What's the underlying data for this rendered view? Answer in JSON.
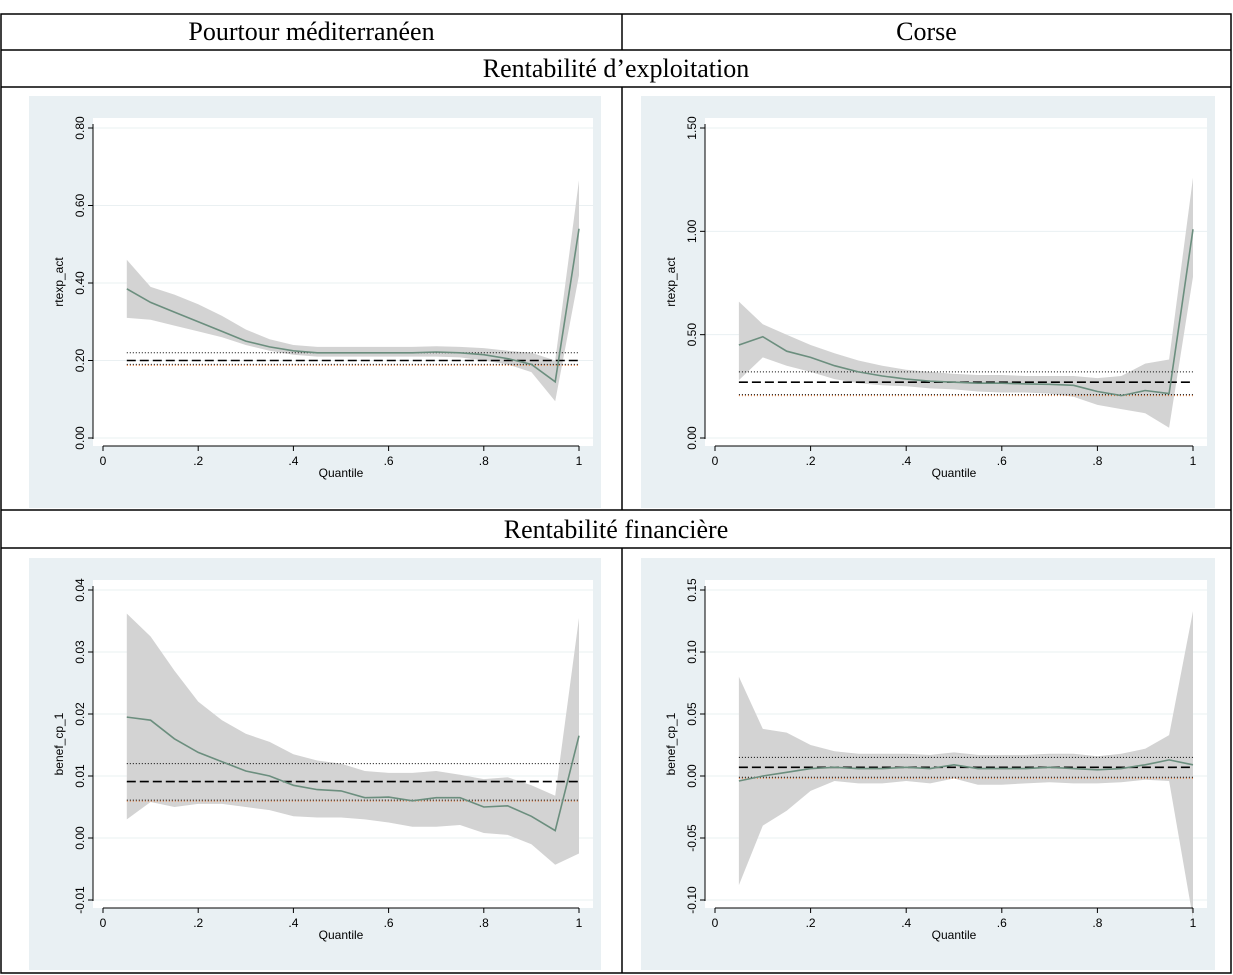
{
  "table": {
    "col_headers": [
      "Pourtour méditerranéen",
      "Corse"
    ],
    "row_headers": [
      "Rentabilité d’exploitation",
      "Rentabilité financière"
    ]
  },
  "colors": {
    "panel_bg": "#e9f0f3",
    "plot_bg": "#ffffff",
    "band": "#d3d3d3",
    "line": "#6b8e7e",
    "ref_line": "#000000",
    "ref_orange": "#e8722a"
  },
  "chart_data": [
    {
      "type": "line",
      "xlabel": "Quantile",
      "ylabel": "rtexp_act",
      "xlim": [
        0,
        1
      ],
      "ylim": [
        0,
        0.8
      ],
      "xticks": [
        "0",
        ".2",
        ".4",
        ".6",
        ".8",
        "1"
      ],
      "yticks": [
        "0.00",
        "0.20",
        "0.40",
        "0.60",
        "0.80"
      ],
      "x": [
        0.05,
        0.1,
        0.15,
        0.2,
        0.25,
        0.3,
        0.35,
        0.4,
        0.45,
        0.5,
        0.55,
        0.6,
        0.65,
        0.7,
        0.75,
        0.8,
        0.85,
        0.9,
        0.95,
        1.0
      ],
      "series": [
        {
          "values": [
            0.385,
            0.35,
            0.325,
            0.3,
            0.275,
            0.25,
            0.235,
            0.225,
            0.22,
            0.22,
            0.22,
            0.22,
            0.22,
            0.222,
            0.22,
            0.215,
            0.205,
            0.19,
            0.145,
            0.54
          ]
        },
        {
          "values": [
            0.46,
            0.39,
            0.37,
            0.345,
            0.315,
            0.28,
            0.255,
            0.24,
            0.235,
            0.235,
            0.235,
            0.235,
            0.235,
            0.237,
            0.235,
            0.232,
            0.225,
            0.22,
            0.2,
            0.665
          ]
        },
        {
          "values": [
            0.31,
            0.305,
            0.29,
            0.275,
            0.26,
            0.24,
            0.225,
            0.215,
            0.21,
            0.21,
            0.21,
            0.21,
            0.21,
            0.21,
            0.208,
            0.2,
            0.19,
            0.17,
            0.095,
            0.42
          ]
        }
      ],
      "reference_lines": {
        "mean": 0.2,
        "ci_upper": 0.22,
        "ci_lower": 0.19,
        "orange": 0.19
      }
    },
    {
      "type": "line",
      "xlabel": "Quantile",
      "ylabel": "rtexp_act",
      "xlim": [
        0,
        1
      ],
      "ylim": [
        0,
        1.5
      ],
      "xticks": [
        "0",
        ".2",
        ".4",
        ".6",
        ".8",
        "1"
      ],
      "yticks": [
        "0.00",
        "0.50",
        "1.00",
        "1.50"
      ],
      "x": [
        0.05,
        0.1,
        0.15,
        0.2,
        0.25,
        0.3,
        0.35,
        0.4,
        0.45,
        0.5,
        0.55,
        0.6,
        0.65,
        0.7,
        0.75,
        0.8,
        0.85,
        0.9,
        0.95,
        1.0
      ],
      "series": [
        {
          "values": [
            0.45,
            0.49,
            0.42,
            0.39,
            0.35,
            0.32,
            0.3,
            0.285,
            0.275,
            0.27,
            0.265,
            0.265,
            0.262,
            0.26,
            0.255,
            0.225,
            0.205,
            0.23,
            0.215,
            1.01
          ]
        },
        {
          "values": [
            0.66,
            0.55,
            0.5,
            0.45,
            0.41,
            0.375,
            0.35,
            0.33,
            0.32,
            0.31,
            0.305,
            0.305,
            0.3,
            0.3,
            0.3,
            0.29,
            0.3,
            0.36,
            0.38,
            1.26
          ]
        },
        {
          "values": [
            0.28,
            0.39,
            0.35,
            0.32,
            0.285,
            0.265,
            0.255,
            0.25,
            0.24,
            0.235,
            0.225,
            0.22,
            0.22,
            0.215,
            0.2,
            0.16,
            0.14,
            0.12,
            0.05,
            0.78
          ]
        }
      ],
      "reference_lines": {
        "mean": 0.27,
        "ci_upper": 0.32,
        "ci_lower": 0.21,
        "orange": 0.21
      }
    },
    {
      "type": "line",
      "xlabel": "Quantile",
      "ylabel": "benef_cp_1",
      "xlim": [
        0,
        1
      ],
      "ylim": [
        -0.01,
        0.04
      ],
      "xticks": [
        "0",
        ".2",
        ".4",
        ".6",
        ".8",
        "1"
      ],
      "yticks": [
        "-0.01",
        "0.00",
        "0.01",
        "0.02",
        "0.03",
        "0.04"
      ],
      "x": [
        0.05,
        0.1,
        0.15,
        0.2,
        0.25,
        0.3,
        0.35,
        0.4,
        0.45,
        0.5,
        0.55,
        0.6,
        0.65,
        0.7,
        0.75,
        0.8,
        0.85,
        0.9,
        0.95,
        1.0
      ],
      "series": [
        {
          "values": [
            0.0195,
            0.019,
            0.016,
            0.0138,
            0.0123,
            0.0108,
            0.01,
            0.0085,
            0.0078,
            0.0076,
            0.0065,
            0.0066,
            0.006,
            0.0065,
            0.0065,
            0.005,
            0.0052,
            0.0035,
            0.0012,
            0.0165
          ]
        },
        {
          "values": [
            0.0362,
            0.0325,
            0.027,
            0.022,
            0.019,
            0.0168,
            0.0155,
            0.0135,
            0.0125,
            0.012,
            0.0108,
            0.0105,
            0.0105,
            0.0108,
            0.0102,
            0.0095,
            0.0098,
            0.0085,
            0.0068,
            0.0355
          ]
        },
        {
          "values": [
            0.003,
            0.0058,
            0.005,
            0.0055,
            0.0055,
            0.005,
            0.0045,
            0.0035,
            0.0033,
            0.0033,
            0.003,
            0.0025,
            0.0018,
            0.0018,
            0.0021,
            0.0008,
            0.0005,
            -0.001,
            -0.0043,
            -0.0025
          ]
        }
      ],
      "reference_lines": {
        "mean": 0.0091,
        "ci_upper": 0.012,
        "ci_lower": 0.0061,
        "orange": 0.0061
      }
    },
    {
      "type": "line",
      "xlabel": "Quantile",
      "ylabel": "benef_cp_1",
      "xlim": [
        0,
        1
      ],
      "ylim": [
        -0.1,
        0.15
      ],
      "xticks": [
        "0",
        ".2",
        ".4",
        ".6",
        ".8",
        "1"
      ],
      "yticks": [
        "-0.10",
        "-0.05",
        "0.00",
        "0.05",
        "0.10",
        "0.15"
      ],
      "x": [
        0.05,
        0.1,
        0.15,
        0.2,
        0.25,
        0.3,
        0.35,
        0.4,
        0.45,
        0.5,
        0.55,
        0.6,
        0.65,
        0.7,
        0.75,
        0.8,
        0.85,
        0.9,
        0.95,
        1.0
      ],
      "series": [
        {
          "values": [
            -0.004,
            0.0,
            0.003,
            0.006,
            0.007,
            0.006,
            0.006,
            0.007,
            0.006,
            0.009,
            0.006,
            0.006,
            0.006,
            0.007,
            0.006,
            0.005,
            0.006,
            0.009,
            0.013,
            0.009
          ]
        },
        {
          "values": [
            0.08,
            0.038,
            0.035,
            0.025,
            0.02,
            0.018,
            0.018,
            0.018,
            0.017,
            0.019,
            0.017,
            0.017,
            0.017,
            0.018,
            0.018,
            0.016,
            0.018,
            0.022,
            0.033,
            0.133
          ]
        },
        {
          "values": [
            -0.088,
            -0.04,
            -0.028,
            -0.012,
            -0.004,
            -0.006,
            -0.006,
            -0.004,
            -0.006,
            -0.002,
            -0.007,
            -0.007,
            -0.006,
            -0.005,
            -0.006,
            -0.006,
            -0.005,
            -0.003,
            -0.004,
            -0.115
          ]
        }
      ],
      "reference_lines": {
        "mean": 0.007,
        "ci_upper": 0.015,
        "ci_lower": -0.001,
        "orange": -0.001
      }
    }
  ]
}
